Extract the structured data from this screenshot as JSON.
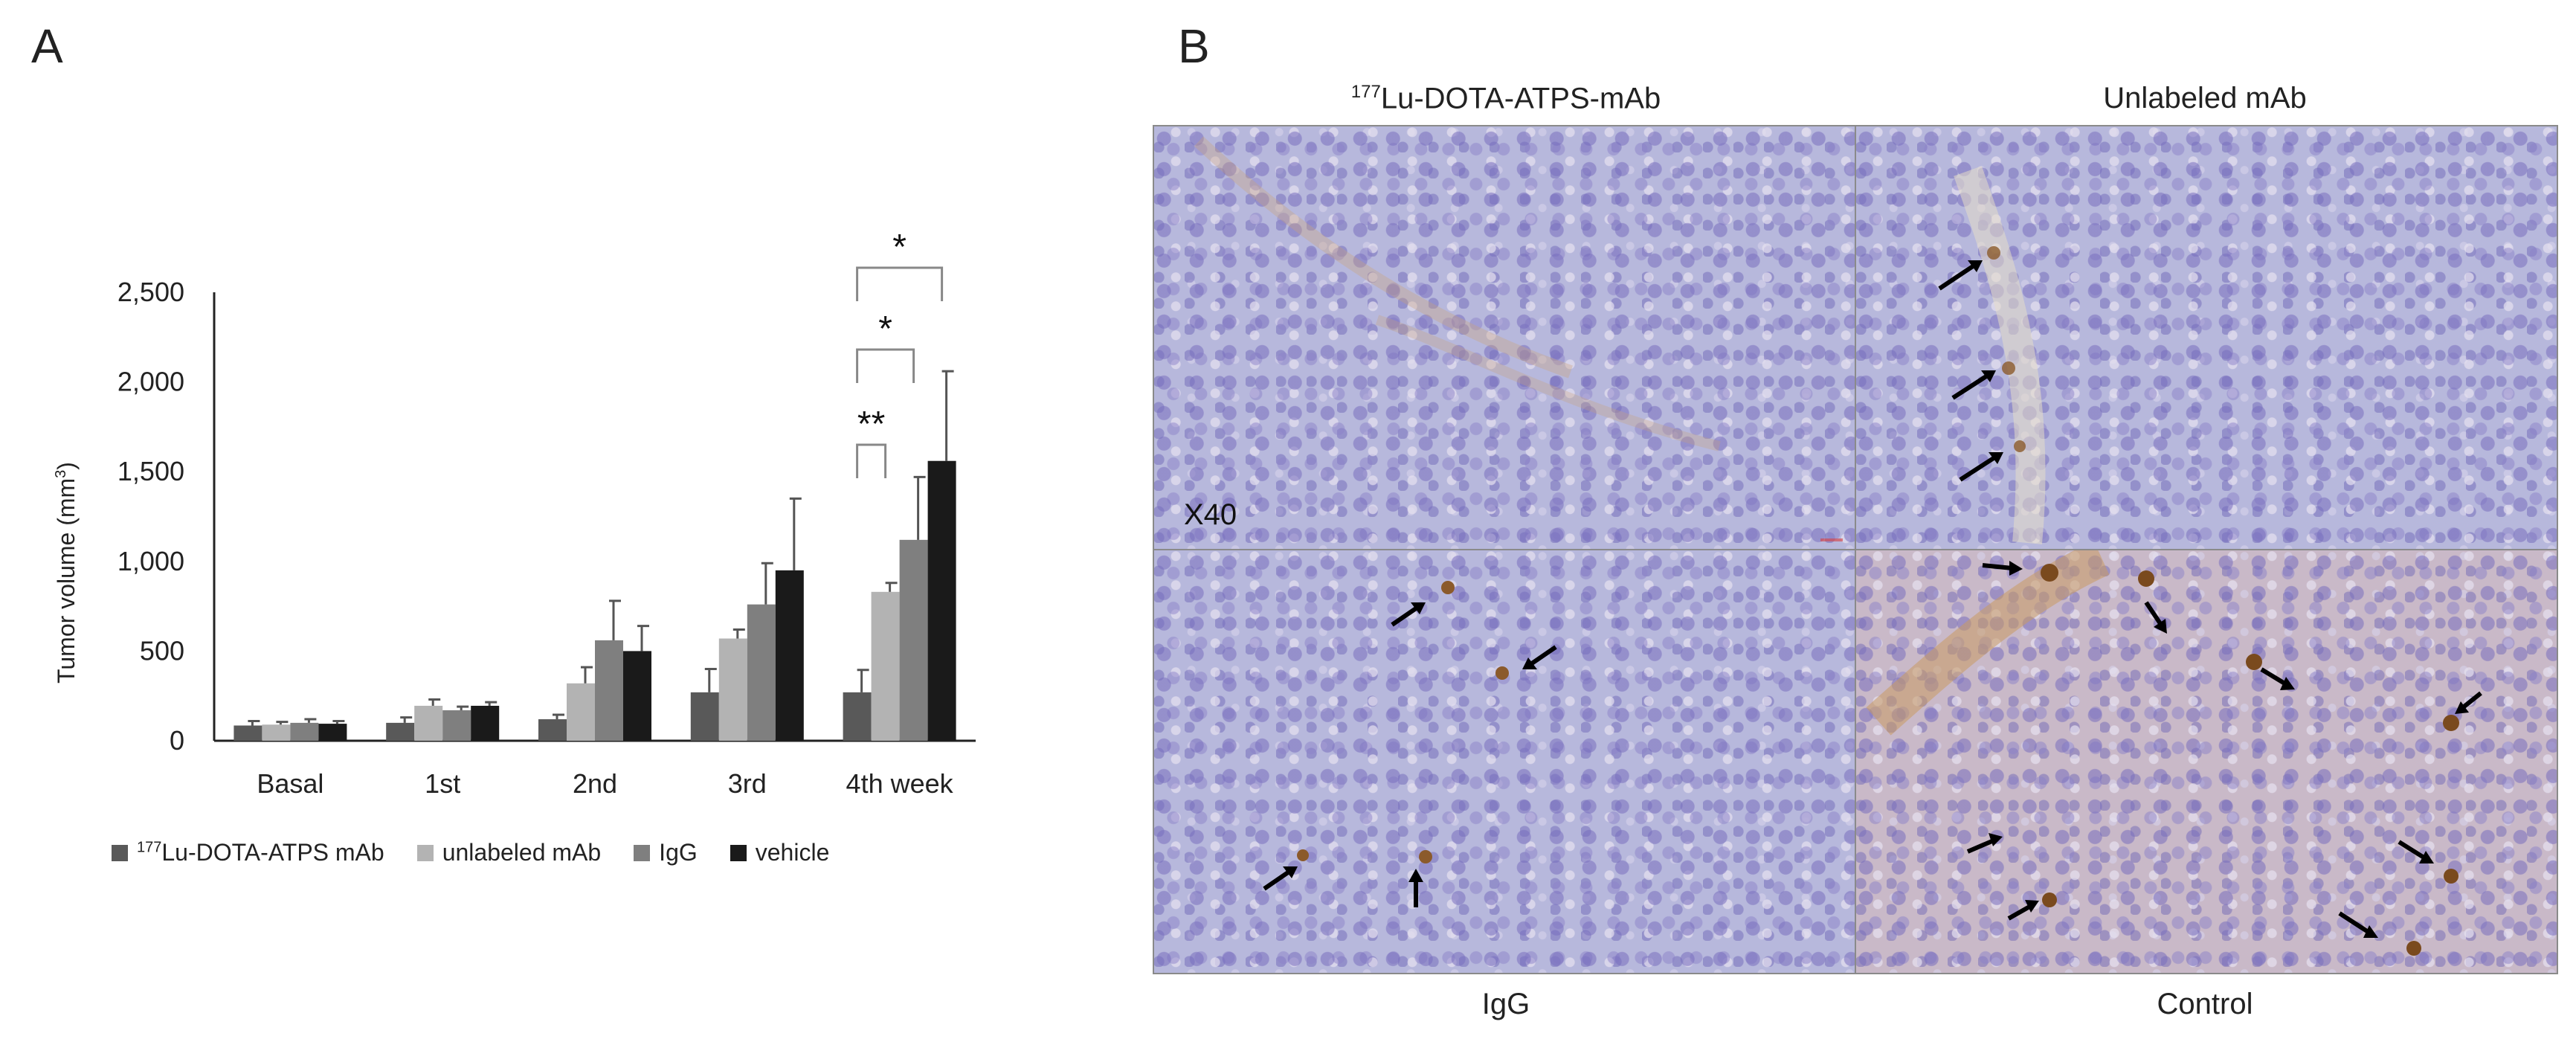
{
  "panels": {
    "a_label": "A",
    "b_label": "B"
  },
  "chart_data": {
    "type": "bar",
    "ylabel": "Tumor volume (mm",
    "ylabel_sup": "3",
    "ylabel_close": ")",
    "ylim": [
      0,
      2500
    ],
    "yticks": [
      {
        "value": 0,
        "label": "0"
      },
      {
        "value": 500,
        "label": "500"
      },
      {
        "value": 1000,
        "label": "1,000"
      },
      {
        "value": 1500,
        "label": "1,500"
      },
      {
        "value": 2000,
        "label": "2,000"
      },
      {
        "value": 2500,
        "label": "2,500"
      }
    ],
    "categories": [
      "Basal",
      "1st",
      "2nd",
      "3rd",
      "4th week"
    ],
    "series": [
      {
        "name_sup": "177",
        "name": "Lu-DOTA-ATPS mAb",
        "color": "#595959",
        "values": [
          85,
          100,
          120,
          270,
          270
        ],
        "errors": [
          25,
          30,
          25,
          130,
          125
        ]
      },
      {
        "name": "unlabeled mAb",
        "color": "#b3b3b3",
        "values": [
          90,
          195,
          320,
          570,
          830
        ],
        "errors": [
          15,
          35,
          90,
          50,
          50
        ]
      },
      {
        "name": "IgG",
        "color": "#7f7f7f",
        "values": [
          100,
          170,
          560,
          760,
          1120
        ],
        "errors": [
          20,
          20,
          220,
          230,
          350
        ]
      },
      {
        "name": "vehicle",
        "color": "#1a1a1a",
        "values": [
          95,
          195,
          500,
          950,
          1560
        ],
        "errors": [
          15,
          20,
          140,
          400,
          500
        ]
      }
    ],
    "annotations": [
      {
        "label": "**",
        "from_series": 0,
        "to_series": 1,
        "category": 4
      },
      {
        "label": "*",
        "from_series": 0,
        "to_series": 2,
        "category": 4
      },
      {
        "label": "*",
        "from_series": 0,
        "to_series": 3,
        "category": 4
      }
    ],
    "legend_position": "bottom",
    "grid": false
  },
  "micrographs": {
    "top_left_title_sup": "177",
    "top_left_title": "Lu-DOTA-ATPS-mAb",
    "top_right_title": "Unlabeled mAb",
    "bottom_left_title": "IgG",
    "bottom_right_title": "Control",
    "magnification": "X40",
    "arrow_color": "#000000",
    "stain_color": "#8b5a2b"
  }
}
